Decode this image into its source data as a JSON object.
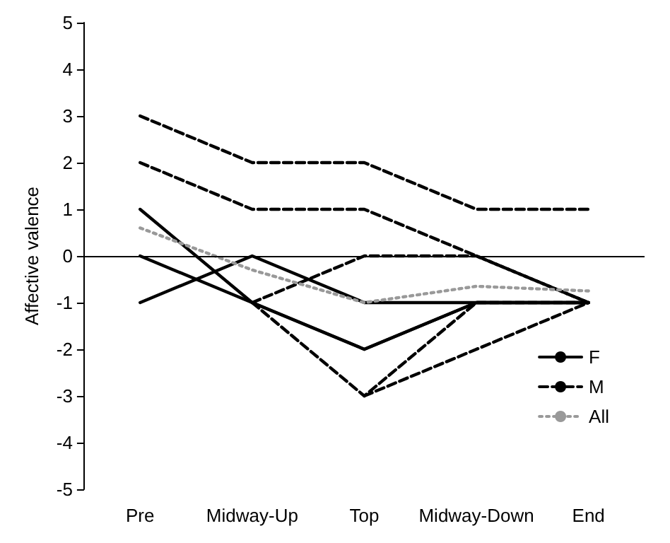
{
  "chart_data": {
    "type": "line",
    "ylabel": "Affective valence",
    "categories": [
      "Pre",
      "Midway-Up",
      "Top",
      "Midway-Down",
      "End"
    ],
    "series": [
      {
        "name": "F",
        "color": "#000000",
        "line_style": "solid",
        "values": [
          1,
          -1,
          -2,
          -1,
          -1
        ]
      },
      {
        "color": "#000000",
        "line_style": "solid",
        "values": [
          0,
          -1,
          -2,
          -1,
          -1
        ]
      },
      {
        "color": "#000000",
        "line_style": "solid",
        "values": [
          -1,
          0,
          -1,
          -1,
          -1
        ]
      },
      {
        "name": "M",
        "color": "#000000",
        "line_style": "dashed",
        "values": [
          3,
          2,
          2,
          1,
          1
        ]
      },
      {
        "color": "#000000",
        "line_style": "dashed",
        "values": [
          2,
          1,
          1,
          0,
          -1
        ]
      },
      {
        "color": "#000000",
        "line_style": "dashed",
        "values": [
          null,
          -1,
          0,
          0,
          -1
        ]
      },
      {
        "color": "#000000",
        "line_style": "dashed",
        "values": [
          null,
          -1,
          -3,
          -1,
          -1
        ]
      },
      {
        "color": "#000000",
        "line_style": "dashed",
        "values": [
          null,
          null,
          -3,
          -2,
          -1
        ]
      },
      {
        "name": "All",
        "color": "#999999",
        "line_style": "dotted",
        "values": [
          0.6,
          -0.3,
          -1,
          -0.65,
          -0.75
        ]
      }
    ],
    "ylim": [
      -5,
      5
    ],
    "yticks": [
      -5,
      -4,
      -3,
      -2,
      -1,
      0,
      1,
      2,
      3,
      4,
      5
    ],
    "ref_lines": [
      {
        "axis": "y",
        "value": 0,
        "color": "#000000"
      }
    ],
    "grid": false,
    "legend": "bottom right",
    "marker": "none"
  }
}
